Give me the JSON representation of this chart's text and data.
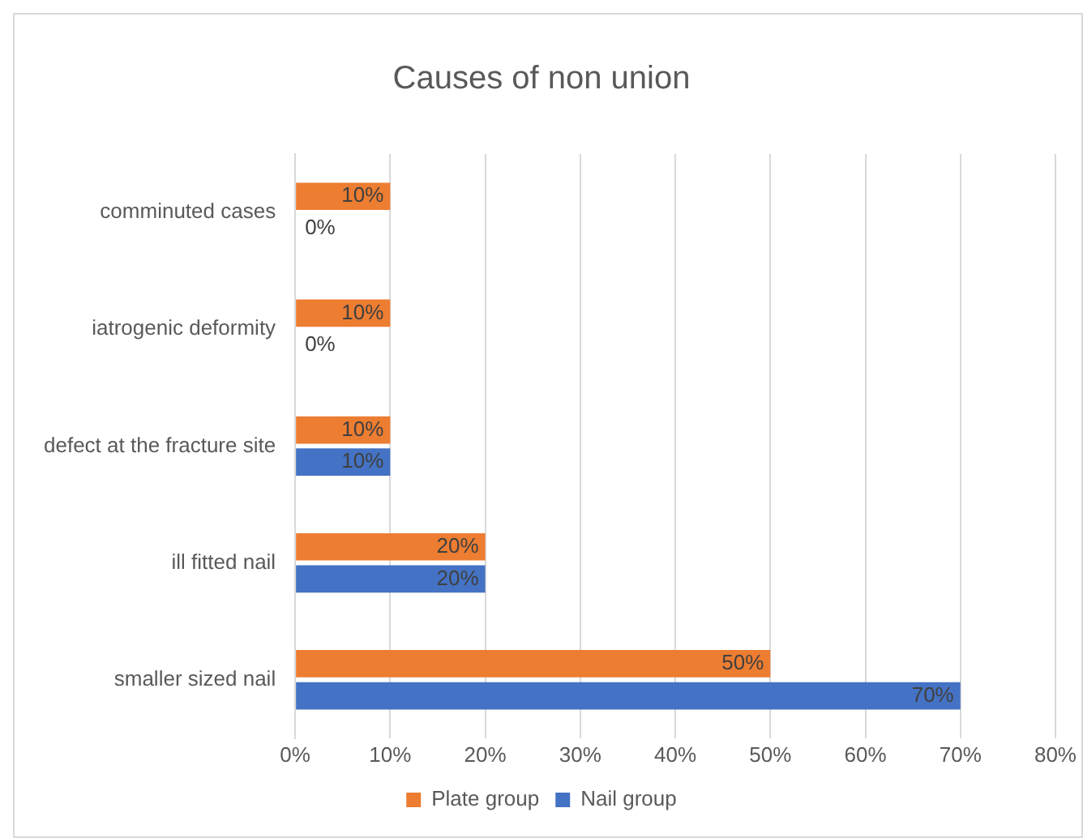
{
  "chart_data": {
    "type": "bar",
    "orientation": "horizontal",
    "title": "Causes of non union",
    "categories": [
      "comminuted cases",
      "iatrogenic deformity",
      "defect at the fracture site",
      "ill fitted nail",
      "smaller sized nail"
    ],
    "series": [
      {
        "name": "Plate group",
        "color": "#ed7d31",
        "values": [
          10,
          10,
          10,
          20,
          50
        ],
        "value_labels": [
          "10%",
          "10%",
          "10%",
          "20%",
          "50%"
        ]
      },
      {
        "name": "Nail group",
        "color": "#4472c4",
        "values": [
          0,
          0,
          10,
          20,
          70
        ],
        "value_labels": [
          "0%",
          "0%",
          "10%",
          "20%",
          "70%"
        ]
      }
    ],
    "xlim": [
      0,
      80
    ],
    "xticks": [
      {
        "value": 0,
        "label": "0%"
      },
      {
        "value": 10,
        "label": "10%"
      },
      {
        "value": 20,
        "label": "20%"
      },
      {
        "value": 30,
        "label": "30%"
      },
      {
        "value": 40,
        "label": "40%"
      },
      {
        "value": 50,
        "label": "50%"
      },
      {
        "value": 60,
        "label": "60%"
      },
      {
        "value": 70,
        "label": "70%"
      },
      {
        "value": 80,
        "label": "80%"
      }
    ],
    "grid": "x",
    "legend": "bottom"
  }
}
